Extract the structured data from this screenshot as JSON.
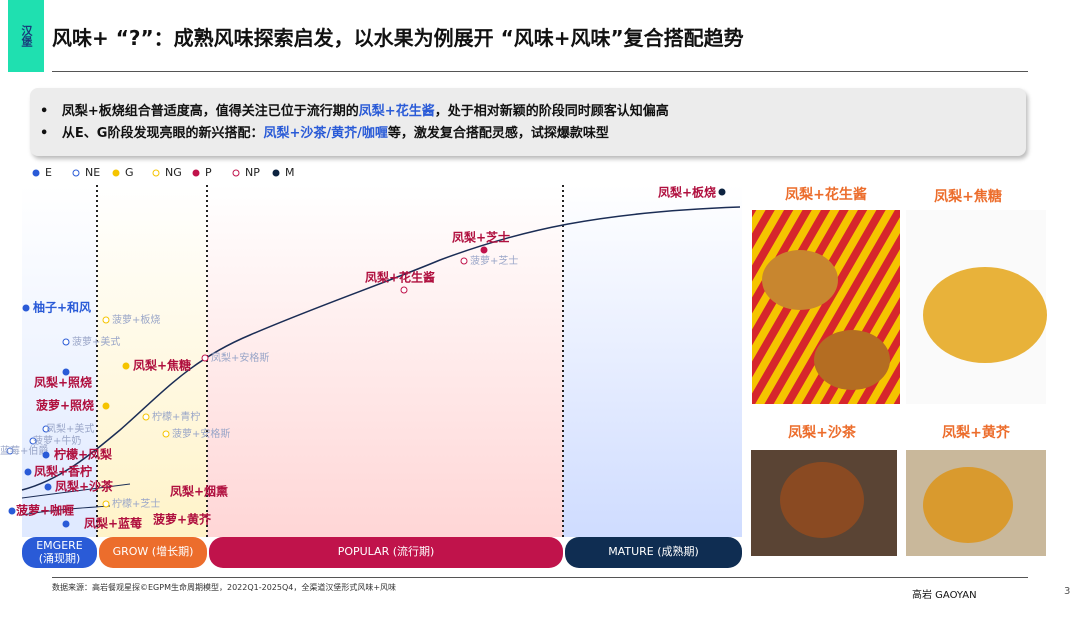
{
  "header": {
    "tag": "汉堡",
    "title": "风味+ “?”：成熟风味探索启发，以水果为例展开 “风味+风味”复合搭配趋势"
  },
  "bullets": [
    [
      "凤梨+板烧组合普适度高，值得关注已位于流行期的",
      "凤梨+花生酱",
      "，处于相对新颖的阶段同时顾客认知偏高"
    ],
    [
      "从E、G阶段发现亮眼的新兴搭配：",
      "凤梨+沙茶/黄芥/咖喱",
      "等，激发复合搭配灵感，试探爆款味型"
    ]
  ],
  "legend": [
    "E",
    "NE",
    "G",
    "NG",
    "P",
    "NP",
    "M"
  ],
  "stages": [
    {
      "name": "EMGERE",
      "sub": "(涌现期)"
    },
    {
      "name": "GROW (增长期)"
    },
    {
      "name": "POPULAR (流行期)"
    },
    {
      "name": "MATURE (成熟期)"
    }
  ],
  "points": [
    {
      "label": "凤梨+板烧",
      "type": "M"
    },
    {
      "label": "凤梨+芝士",
      "type": "P"
    },
    {
      "label": "菠萝+芝士",
      "type": "NP"
    },
    {
      "label": "凤梨+花生酱",
      "type": "NP"
    },
    {
      "label": "凤梨+安格斯",
      "type": "NP"
    },
    {
      "label": "凤梨+焦糖",
      "type": "G"
    },
    {
      "label": "菠萝+板烧",
      "type": "NG"
    },
    {
      "label": "柠檬+青柠",
      "type": "NG"
    },
    {
      "label": "菠萝+安格斯",
      "type": "NG"
    },
    {
      "label": "柠檬+芝士",
      "type": "NG"
    },
    {
      "label": "凤梨+烟熏",
      "type": "G"
    },
    {
      "label": "菠萝+黄芥",
      "type": "G"
    },
    {
      "label": "柚子+和风",
      "type": "E"
    },
    {
      "label": "菠萝+美式",
      "type": "NE"
    },
    {
      "label": "凤梨+照烧",
      "type": "E"
    },
    {
      "label": "菠萝+照烧",
      "type": "G"
    },
    {
      "label": "凤梨+美式",
      "type": "NE"
    },
    {
      "label": "菠萝+牛奶",
      "type": "NE"
    },
    {
      "label": "蓝莓+伯爵",
      "type": "NE"
    },
    {
      "label": "柠檬+凤梨",
      "type": "E"
    },
    {
      "label": "凤梨+香柠",
      "type": "E"
    },
    {
      "label": "凤梨+沙茶",
      "type": "E"
    },
    {
      "label": "菠萝+咖喱",
      "type": "E"
    },
    {
      "label": "凤梨+蓝莓",
      "type": "E"
    }
  ],
  "images": [
    "凤梨+花生酱",
    "凤梨+焦糖",
    "凤梨+沙茶",
    "凤梨+黄芥"
  ],
  "footer": {
    "source": "数据来源：高岩餐观星探©EGPM生命周期模型，2022Q1-2025Q4，全渠道汉堡形式风味+风味",
    "brand": "高岩 GAOYAN",
    "page": "3"
  }
}
